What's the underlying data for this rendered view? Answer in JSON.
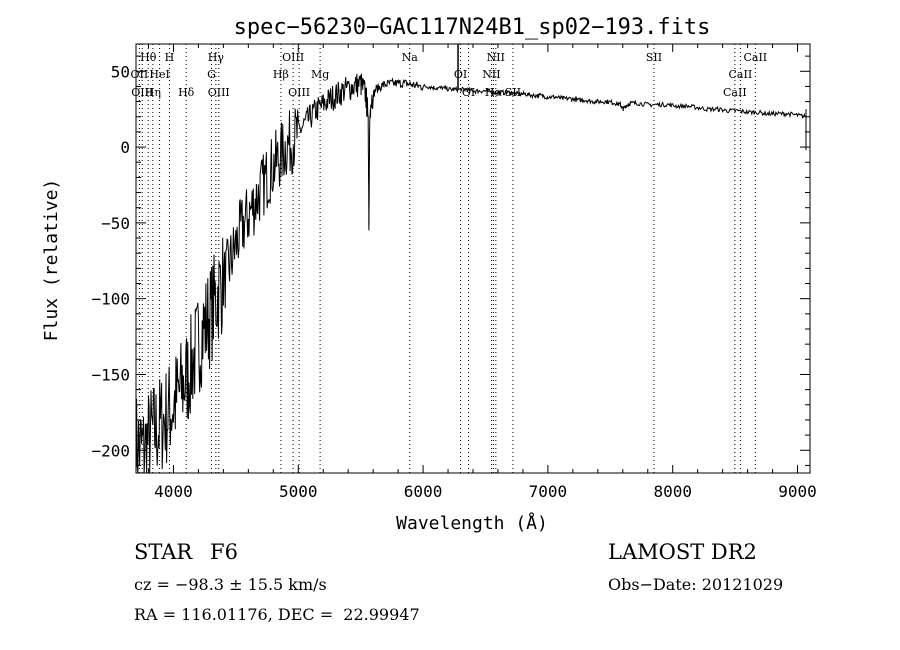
{
  "chart_data": {
    "type": "line",
    "title": "spec−56230−GAC117N24B1_sp02−193.fits",
    "xlabel": "Wavelength (Å)",
    "ylabel": "Flux (relative)",
    "xlim": [
      3700,
      9100
    ],
    "ylim": [
      -215,
      68
    ],
    "x_ticks": [
      4000,
      5000,
      6000,
      7000,
      8000,
      9000
    ],
    "y_ticks": [
      -200,
      -150,
      -100,
      -50,
      0,
      50
    ],
    "x_tick_labels": [
      "4000",
      "5000",
      "6000",
      "7000",
      "8000",
      "9000"
    ],
    "y_tick_labels": [
      "−200",
      "−150",
      "−100",
      "−50",
      "0",
      "50"
    ],
    "grid": false,
    "series": [
      {
        "x": [
          3700,
          3760,
          3820,
          3880,
          3940,
          4000,
          4060,
          4120,
          4180,
          4240,
          4300,
          4360,
          4420,
          4480,
          4540,
          4600,
          4660,
          4720,
          4780,
          4840,
          4900,
          4960,
          5020,
          5080,
          5140,
          5200,
          5260,
          5320,
          5380,
          5440,
          5500,
          5540,
          5560,
          5566,
          5572,
          5580,
          5620,
          5680,
          5740,
          5800,
          5860,
          5920,
          5980,
          6040,
          6100,
          6160,
          6220,
          6280,
          6340,
          6400,
          6460,
          6520,
          6580,
          6640,
          6700,
          6760,
          6820,
          6880,
          6940,
          7000,
          7060,
          7120,
          7180,
          7240,
          7300,
          7360,
          7420,
          7480,
          7540,
          7580,
          7600,
          7620,
          7660,
          7720,
          7800,
          7880,
          7960,
          8040,
          8120,
          8200,
          8280,
          8360,
          8440,
          8520,
          8600,
          8680,
          8760,
          8840,
          8920,
          9000,
          9060
        ],
        "y": [
          -195,
          -200,
          -190,
          -185,
          -178,
          -170,
          -160,
          -150,
          -135,
          -120,
          -110,
          -95,
          -85,
          -70,
          -55,
          -45,
          -35,
          -25,
          -15,
          -8,
          0,
          5,
          12,
          18,
          24,
          28,
          32,
          35,
          38,
          40,
          42,
          35,
          20,
          -55,
          15,
          30,
          38,
          41,
          42,
          42,
          42,
          41,
          40,
          40,
          39,
          39,
          38,
          38,
          38,
          37,
          37,
          37,
          36,
          36,
          36,
          35,
          35,
          34,
          34,
          33,
          33,
          32,
          32,
          31,
          31,
          30,
          30,
          30,
          29,
          28,
          25,
          27,
          29,
          29,
          28,
          28,
          28,
          27,
          27,
          26,
          25,
          25,
          24,
          24,
          23,
          23,
          22,
          22,
          22,
          21,
          20
        ]
      }
    ],
    "line_labels": [
      {
        "text": "Hθ",
        "x": 3798,
        "row": 1
      },
      {
        "text": "OII",
        "x": 3727,
        "row": 2
      },
      {
        "text": "OIII",
        "x": 3750,
        "row": 3
      },
      {
        "text": "H",
        "x": 3968,
        "row": 1
      },
      {
        "text": "HeI",
        "x": 3889,
        "row": 2
      },
      {
        "text": "Hη",
        "x": 3835,
        "row": 3
      },
      {
        "text": "Hδ",
        "x": 4102,
        "row": 3
      },
      {
        "text": "Hγ",
        "x": 4340,
        "row": 1
      },
      {
        "text": "G",
        "x": 4305,
        "row": 2
      },
      {
        "text": "OIII",
        "x": 4363,
        "row": 3
      },
      {
        "text": "OIII",
        "x": 4959,
        "row": 1
      },
      {
        "text": "Hβ",
        "x": 4861,
        "row": 2
      },
      {
        "text": "Mg",
        "x": 5175,
        "row": 2
      },
      {
        "text": "OIII",
        "x": 5007,
        "row": 3
      },
      {
        "text": "Na",
        "x": 5893,
        "row": 1
      },
      {
        "text": "OI",
        "x": 6300,
        "row": 2
      },
      {
        "text": "OI",
        "x": 6364,
        "row": 3
      },
      {
        "text": "NII",
        "x": 6583,
        "row": 1
      },
      {
        "text": "NII",
        "x": 6548,
        "row": 2
      },
      {
        "text": "Hα",
        "x": 6563,
        "row": 3
      },
      {
        "text": "SII",
        "x": 6720,
        "row": 3
      },
      {
        "text": "SII",
        "x": 7850,
        "row": 1
      },
      {
        "text": "CaII",
        "x": 8662,
        "row": 1
      },
      {
        "text": "CaII",
        "x": 8542,
        "row": 2
      },
      {
        "text": "CaII",
        "x": 8498,
        "row": 3
      }
    ]
  },
  "info": {
    "class_label": "STAR",
    "subclass_label": "F6",
    "cz_line": "cz = −98.3 ± 15.5 km/s",
    "coords_line": "RA = 116.01176, DEC =  22.99947",
    "survey_label": "LAMOST DR2",
    "obs_date_line": "Obs−Date: 20121029"
  }
}
